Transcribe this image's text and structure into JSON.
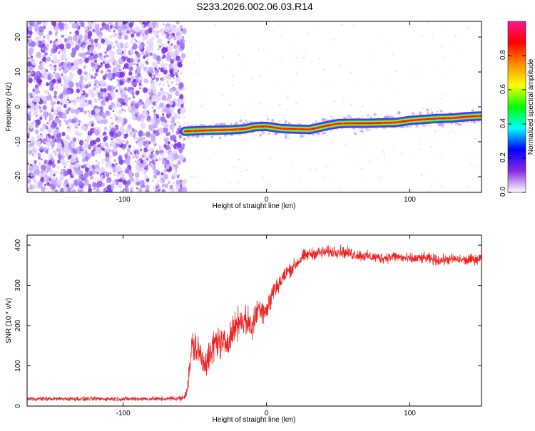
{
  "title": "S233.2026.002.06.03.R14",
  "chart_data": [
    {
      "type": "heatmap",
      "xlabel": "Height of straight line (km)",
      "ylabel": "Frequency (Hz)",
      "xlim": [
        -167,
        150
      ],
      "ylim": [
        -24.5,
        24.5
      ],
      "x_ticks": [
        -100,
        0,
        100
      ],
      "y_ticks": [
        20,
        10,
        0,
        -10,
        -20
      ],
      "noise_region_x": [
        -167,
        -57
      ],
      "signal_start_x": -57,
      "ridge": {
        "x": [
          -57,
          -45,
          -35,
          -25,
          -15,
          -8,
          0,
          10,
          20,
          30,
          40,
          50,
          60,
          70,
          80,
          90,
          100,
          110,
          120,
          130,
          140,
          150
        ],
        "y": [
          -7,
          -6.8,
          -6.7,
          -6.6,
          -6.3,
          -5.7,
          -5.6,
          -6.2,
          -6.4,
          -6.5,
          -5.6,
          -4.8,
          -4.7,
          -4.7,
          -4.6,
          -4.5,
          -3.9,
          -3.6,
          -3.3,
          -3.2,
          -2.8,
          -2.6
        ]
      },
      "colorbar": {
        "label": "Normalized spectral amplitude",
        "range": [
          0,
          1
        ],
        "ticks": [
          0.0,
          0.2,
          0.4,
          0.6,
          0.8
        ],
        "tick_labels": [
          "0.0",
          "0.2",
          "0.4",
          "0.6",
          "0.8"
        ],
        "colors": [
          "#ffffff",
          "#8a2be2",
          "#0000ff",
          "#00ffff",
          "#00ff00",
          "#ffff00",
          "#ff8c00",
          "#ff0000",
          "#ff1493"
        ]
      }
    },
    {
      "type": "line",
      "xlabel": "Height of straight line (km)",
      "ylabel": "SNR (10 * v/v)",
      "xlim": [
        -167,
        150
      ],
      "ylim": [
        0,
        425
      ],
      "x_ticks": [
        -100,
        0,
        100
      ],
      "y_ticks": [
        0,
        100,
        200,
        300,
        400
      ],
      "series": [
        {
          "color": "#ee2222",
          "x": [
            -167,
            -140,
            -100,
            -70,
            -58,
            -55,
            -52,
            -48,
            -44,
            -40,
            -35,
            -30,
            -25,
            -20,
            -15,
            -10,
            -5,
            0,
            5,
            10,
            15,
            20,
            25,
            30,
            40,
            50,
            60,
            70,
            80,
            90,
            100,
            110,
            120,
            130,
            140,
            150
          ],
          "y": [
            18,
            18,
            18,
            18,
            20,
            45,
            150,
            140,
            110,
            120,
            165,
            150,
            175,
            210,
            215,
            195,
            250,
            235,
            290,
            310,
            335,
            350,
            370,
            378,
            382,
            385,
            378,
            372,
            368,
            372,
            365,
            368,
            362,
            365,
            362,
            368
          ],
          "noise": [
            8,
            8,
            8,
            8,
            10,
            30,
            60,
            60,
            55,
            60,
            60,
            55,
            55,
            55,
            55,
            55,
            50,
            50,
            40,
            35,
            30,
            25,
            25,
            22,
            22,
            22,
            22,
            20,
            20,
            20,
            20,
            20,
            20,
            20,
            20,
            20
          ]
        }
      ]
    }
  ]
}
